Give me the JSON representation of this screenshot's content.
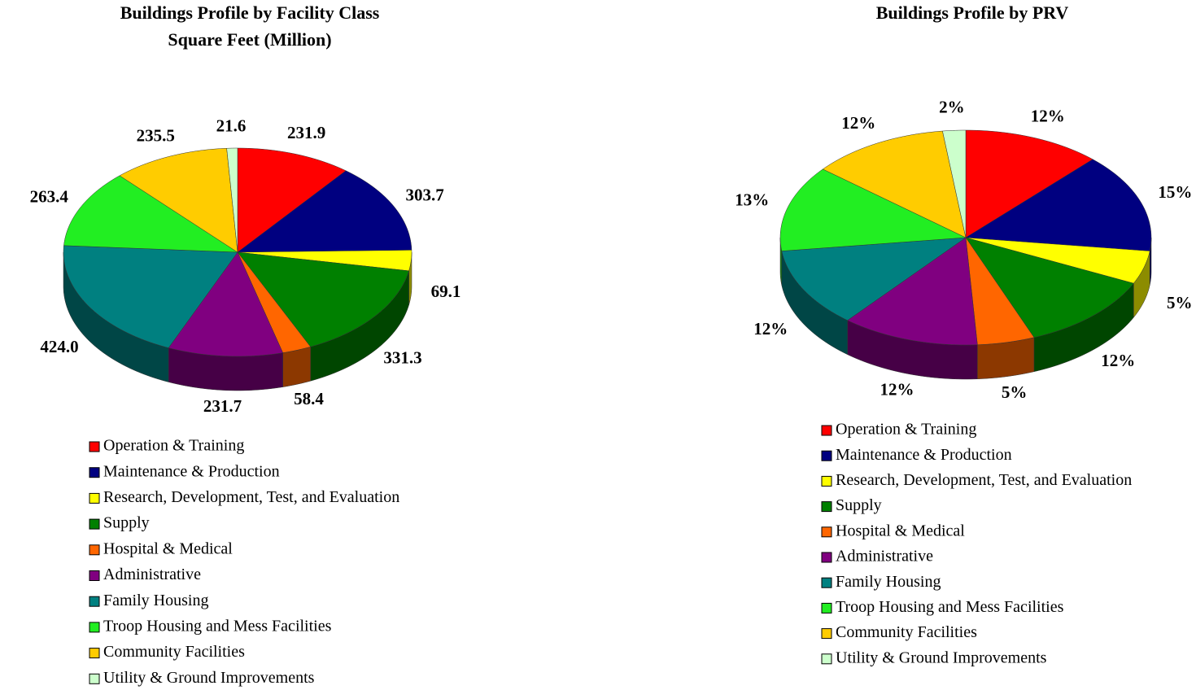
{
  "chart_data": [
    {
      "type": "pie3d",
      "title": "Buildings Profile by Facility Class",
      "subtitle": "Square Feet (Million)",
      "categories": [
        "Operation & Training",
        "Maintenance & Production",
        "Research, Development, Test, and Evaluation",
        "Supply",
        "Hospital & Medical",
        "Administrative",
        "Family Housing",
        "Troop Housing and Mess Facilities",
        "Community Facilities",
        "Utility & Ground Improvements"
      ],
      "values": [
        231.9,
        303.7,
        69.1,
        331.3,
        58.4,
        231.7,
        424.0,
        263.4,
        235.5,
        21.6
      ],
      "value_labels": [
        "231.9",
        "303.7",
        "69.1",
        "331.3",
        "58.4",
        "231.7",
        "424.0",
        "263.4",
        "235.5",
        "21.6"
      ],
      "colors": [
        "#ff0000",
        "#000080",
        "#ffff00",
        "#008000",
        "#ff6600",
        "#800080",
        "#008080",
        "#22ee22",
        "#ffcc00",
        "#ccffcc"
      ]
    },
    {
      "type": "pie3d",
      "title": "Buildings Profile by PRV",
      "categories": [
        "Operation & Training",
        "Maintenance & Production",
        "Research, Development, Test, and Evaluation",
        "Supply",
        "Hospital & Medical",
        "Administrative",
        "Family Housing",
        "Troop Housing and Mess Facilities",
        "Community Facilities",
        "Utility & Ground Improvements"
      ],
      "values": [
        12,
        15,
        5,
        12,
        5,
        12,
        12,
        13,
        12,
        2
      ],
      "value_labels": [
        "12%",
        "15%",
        "5%",
        "12%",
        "5%",
        "12%",
        "12%",
        "13%",
        "12%",
        "2%"
      ],
      "colors": [
        "#ff0000",
        "#000080",
        "#ffff00",
        "#008000",
        "#ff6600",
        "#800080",
        "#008080",
        "#22ee22",
        "#ffcc00",
        "#ccffcc"
      ]
    }
  ]
}
